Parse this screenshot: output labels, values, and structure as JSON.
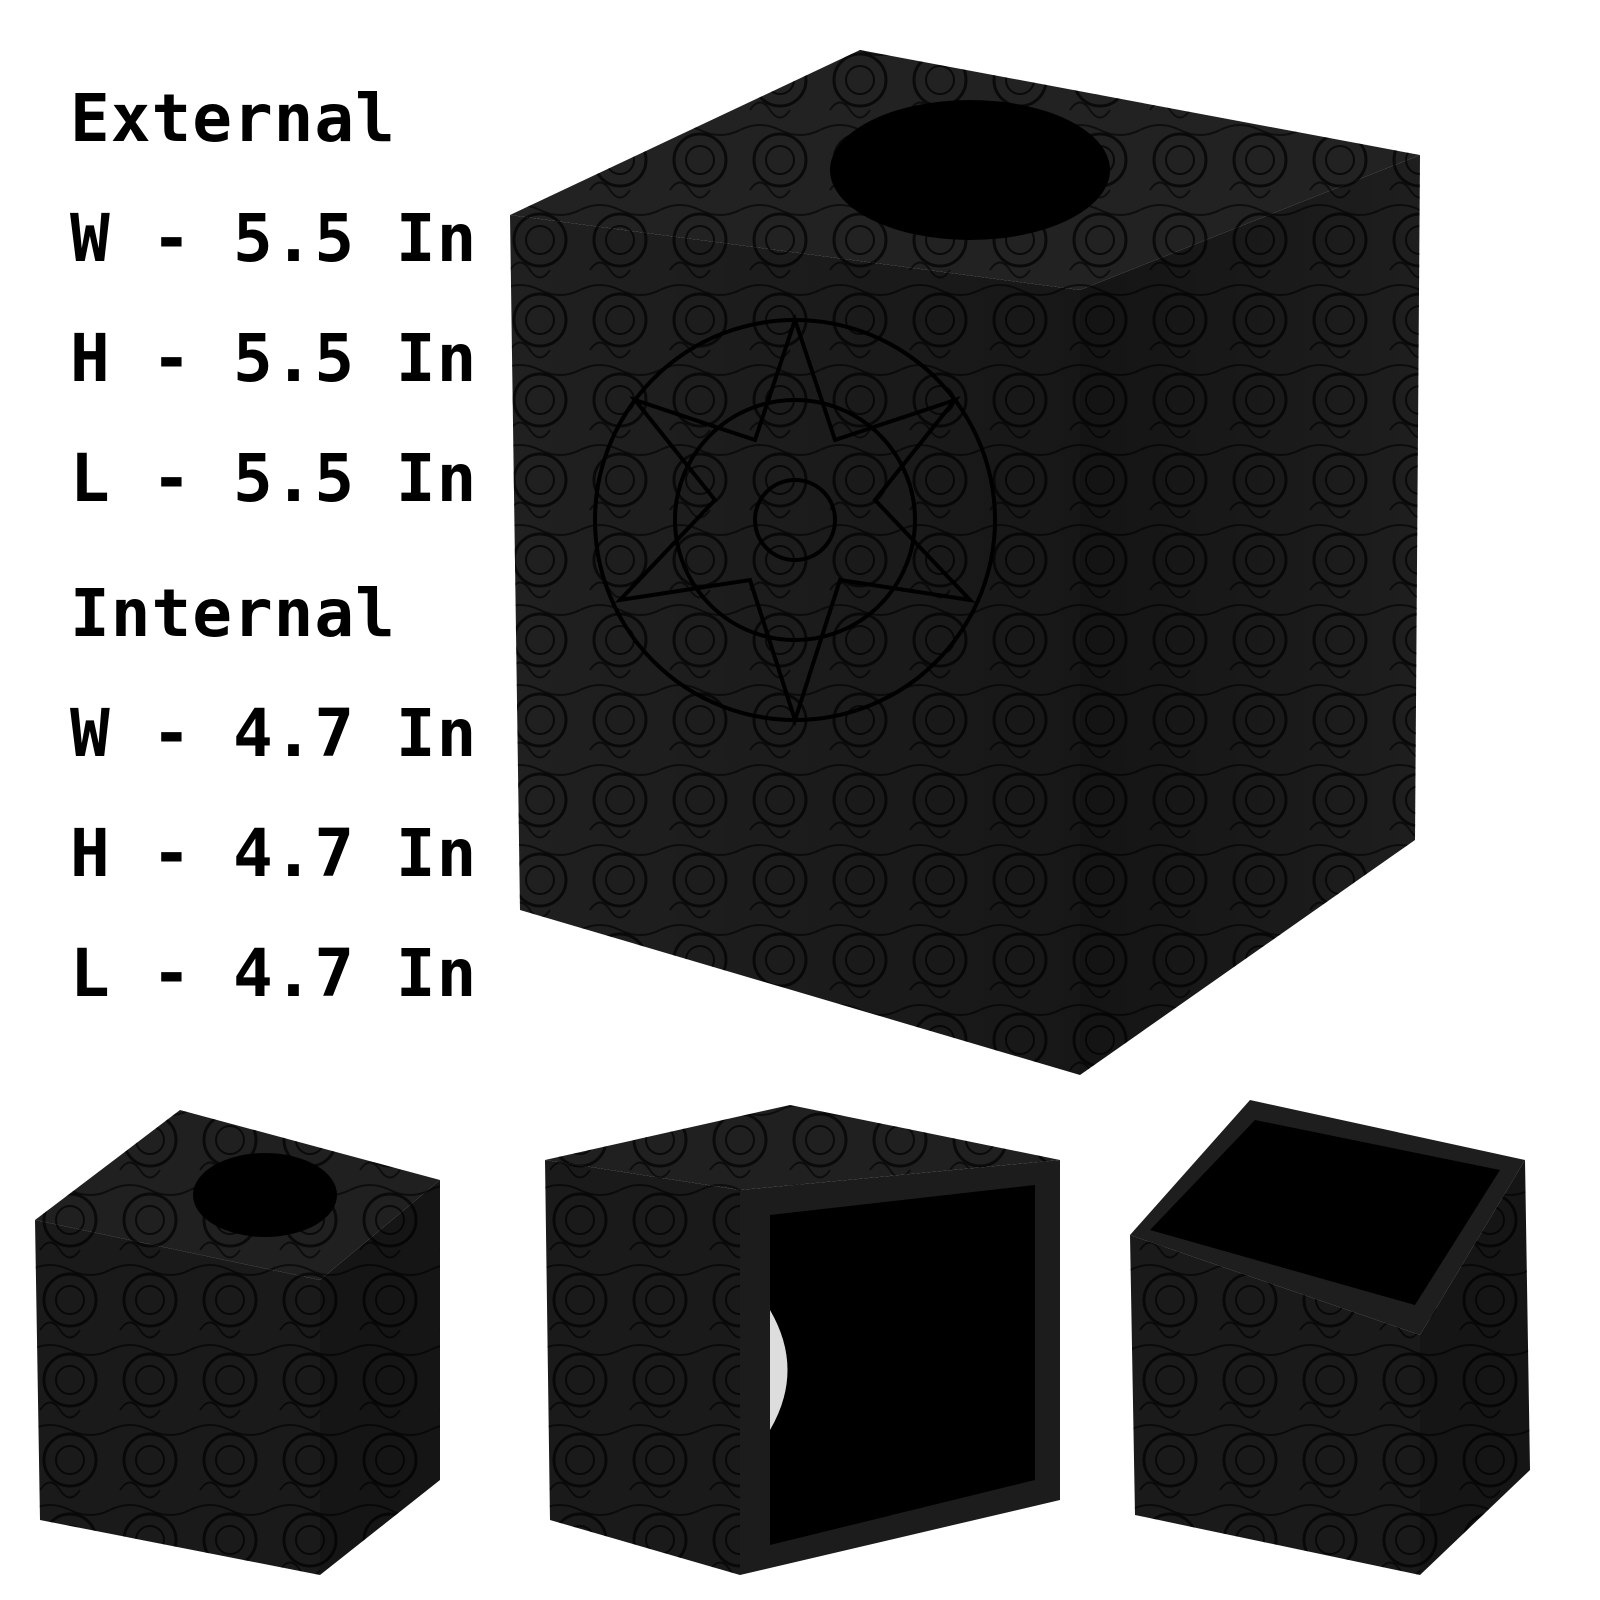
{
  "dimensions": {
    "external_heading": "External",
    "external_w": "W - 5.5 In",
    "external_h": "H - 5.5 In",
    "external_l": "L - 5.5 In",
    "internal_heading": "Internal",
    "internal_w": "W - 4.7 In",
    "internal_h": "H - 4.7 In",
    "internal_l": "L - 4.7 In"
  },
  "product": {
    "color": "#1b1b1b",
    "pattern_color": "#0a0a0a"
  }
}
